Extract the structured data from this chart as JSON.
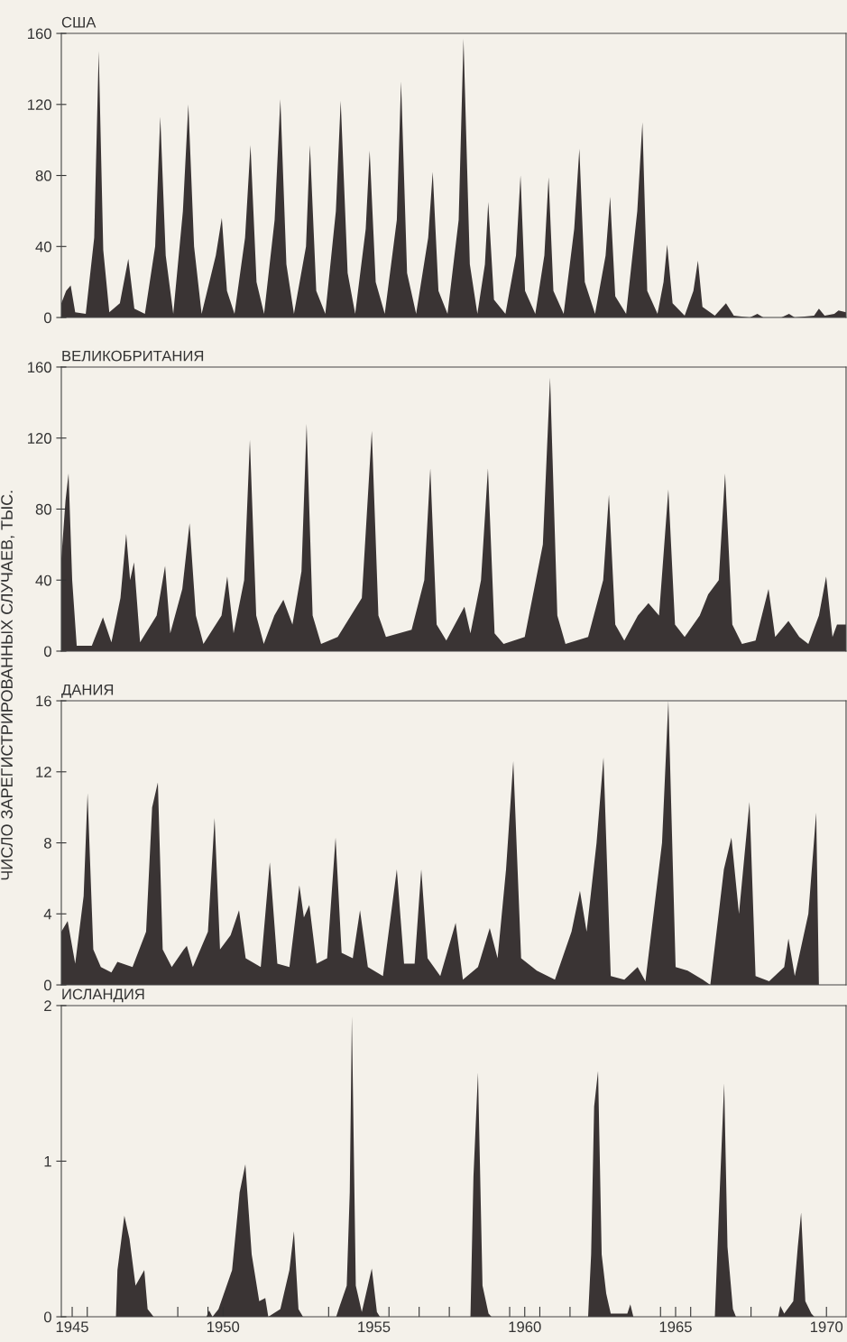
{
  "chart_data": [
    {
      "type": "area",
      "title": "США",
      "xlim": [
        1944.64,
        1970.65
      ],
      "ylim": [
        0,
        160
      ],
      "yticks": [
        0,
        40,
        80,
        120,
        160
      ],
      "tick_labels": "y",
      "grid": false,
      "series": [
        {
          "color": "#3a3434",
          "x": [
            1944.64,
            1944.8,
            1944.95,
            1945.1,
            1945.45,
            1945.73,
            1945.88,
            1946.03,
            1946.23,
            1946.58,
            1946.86,
            1947.06,
            1947.41,
            1947.75,
            1947.92,
            1948.1,
            1948.35,
            1948.67,
            1948.85,
            1949.04,
            1949.29,
            1949.76,
            1949.96,
            1950.13,
            1950.38,
            1950.73,
            1950.91,
            1951.11,
            1951.36,
            1951.71,
            1951.9,
            1952.1,
            1952.35,
            1952.75,
            1952.88,
            1953.09,
            1953.39,
            1953.74,
            1953.9,
            1954.13,
            1954.38,
            1954.73,
            1954.86,
            1955.06,
            1955.36,
            1955.76,
            1955.9,
            1956.1,
            1956.4,
            1956.8,
            1956.95,
            1957.14,
            1957.44,
            1957.81,
            1957.97,
            1958.18,
            1958.43,
            1958.68,
            1958.79,
            1958.98,
            1959.36,
            1959.71,
            1959.86,
            1960.01,
            1960.35,
            1960.65,
            1960.79,
            1960.95,
            1961.29,
            1961.64,
            1961.81,
            1961.99,
            1962.33,
            1962.68,
            1962.83,
            1963.0,
            1963.36,
            1963.73,
            1963.9,
            1964.06,
            1964.4,
            1964.6,
            1964.72,
            1964.9,
            1965.3,
            1965.59,
            1965.74,
            1965.89,
            1966.3,
            1966.67,
            1966.93,
            1967.46,
            1967.71,
            1967.91,
            1968.5,
            1968.76,
            1968.95,
            1969.59,
            1969.75,
            1969.94,
            1970.26,
            1970.4,
            1970.65
          ],
          "values": [
            8,
            15,
            18,
            3,
            2,
            45,
            150,
            38,
            3,
            8,
            33,
            5,
            2,
            40,
            113,
            35,
            2,
            60,
            120,
            40,
            2,
            35,
            56,
            15,
            2,
            45,
            97,
            20,
            2,
            55,
            123,
            30,
            2,
            40,
            97,
            15,
            2,
            60,
            122,
            25,
            2,
            50,
            94,
            20,
            2,
            55,
            133,
            25,
            2,
            45,
            82,
            15,
            2,
            55,
            157,
            30,
            2,
            30,
            65,
            10,
            2,
            35,
            80,
            15,
            2,
            35,
            79,
            15,
            2,
            50,
            95,
            20,
            2,
            35,
            68,
            12,
            2,
            60,
            110,
            15,
            2,
            20,
            41,
            8,
            1,
            15,
            32,
            6,
            1,
            8,
            1,
            0,
            2,
            0,
            0,
            2,
            0,
            1,
            5,
            1,
            2,
            4,
            3
          ]
        }
      ]
    },
    {
      "type": "area",
      "title": "ВЕЛИКОБРИТАНИЯ",
      "ylabel": "ЧИСЛО ЗАРЕГИСТРИРОВАННЫХ СЛУЧАЕВ, ТЫС.",
      "xlim": [
        1944.64,
        1970.65
      ],
      "ylim": [
        0,
        160
      ],
      "yticks": [
        0,
        40,
        80,
        120,
        160
      ],
      "tick_labels": "y",
      "grid": false,
      "series": [
        {
          "color": "#3a3434",
          "x": [
            1944.64,
            1944.78,
            1944.88,
            1945.0,
            1945.15,
            1945.65,
            1946.02,
            1946.3,
            1946.6,
            1946.79,
            1946.92,
            1947.05,
            1947.25,
            1947.8,
            1948.08,
            1948.25,
            1948.65,
            1948.89,
            1949.1,
            1949.35,
            1949.95,
            1950.14,
            1950.35,
            1950.7,
            1950.89,
            1951.1,
            1951.35,
            1951.7,
            1952.0,
            1952.3,
            1952.6,
            1952.77,
            1952.97,
            1953.25,
            1953.8,
            1954.6,
            1954.93,
            1955.15,
            1955.4,
            1956.25,
            1956.67,
            1956.87,
            1957.08,
            1957.4,
            1958.0,
            1958.2,
            1958.55,
            1958.78,
            1959.0,
            1959.3,
            1960.0,
            1960.6,
            1960.84,
            1961.08,
            1961.35,
            1962.1,
            1962.6,
            1962.79,
            1963.0,
            1963.3,
            1963.75,
            1964.1,
            1964.45,
            1964.76,
            1964.98,
            1965.3,
            1965.8,
            1966.08,
            1966.43,
            1966.64,
            1966.88,
            1967.2,
            1967.65,
            1968.08,
            1968.3,
            1968.74,
            1969.1,
            1969.4,
            1969.75,
            1969.99,
            1970.2,
            1970.35,
            1970.65
          ],
          "values": [
            52,
            85,
            100,
            40,
            3,
            3,
            19,
            5,
            30,
            66,
            40,
            50,
            5,
            20,
            48,
            10,
            35,
            72,
            20,
            4,
            20,
            42,
            10,
            40,
            119,
            20,
            4,
            20,
            29,
            15,
            45,
            128,
            20,
            4,
            8,
            30,
            124,
            20,
            8,
            12,
            40,
            103,
            15,
            6,
            25,
            10,
            40,
            103,
            10,
            4,
            8,
            60,
            154,
            20,
            4,
            8,
            40,
            88,
            15,
            6,
            20,
            27,
            20,
            91,
            15,
            8,
            20,
            32,
            40,
            100,
            15,
            4,
            6,
            35,
            8,
            17,
            8,
            4,
            20,
            42,
            8,
            15,
            15
          ]
        }
      ]
    },
    {
      "type": "area",
      "title": "ДАНИЯ",
      "xlim": [
        1944.64,
        1970.65
      ],
      "ylim": [
        0,
        16
      ],
      "yticks": [
        0,
        4,
        8,
        12,
        16
      ],
      "tick_labels": "y",
      "grid": false,
      "series": [
        {
          "color": "#3a3434",
          "x": [
            1944.64,
            1944.85,
            1945.1,
            1945.38,
            1945.51,
            1945.7,
            1945.95,
            1946.3,
            1946.5,
            1947.0,
            1947.45,
            1947.65,
            1947.84,
            1948.0,
            1948.3,
            1948.7,
            1948.8,
            1949.0,
            1949.5,
            1949.72,
            1949.9,
            1950.25,
            1950.53,
            1950.75,
            1951.25,
            1951.55,
            1951.8,
            1952.2,
            1952.53,
            1952.68,
            1952.86,
            1953.1,
            1953.45,
            1953.73,
            1953.93,
            1954.3,
            1954.54,
            1954.8,
            1955.3,
            1955.76,
            1956.0,
            1956.35,
            1956.57,
            1956.78,
            1957.2,
            1957.71,
            1957.95,
            1958.45,
            1958.84,
            1959.1,
            1959.38,
            1959.62,
            1959.88,
            1960.4,
            1961.0,
            1961.55,
            1961.83,
            1962.05,
            1962.38,
            1962.61,
            1962.85,
            1963.3,
            1963.74,
            1964.0,
            1964.55,
            1964.76,
            1965.0,
            1965.4,
            1965.9,
            1966.15,
            1966.6,
            1966.85,
            1967.1,
            1967.45,
            1967.65,
            1968.1,
            1968.6,
            1968.74,
            1968.95,
            1969.4,
            1969.66,
            1969.75
          ],
          "values": [
            3,
            3.6,
            1.2,
            5,
            10.8,
            2,
            1,
            0.7,
            1.3,
            1,
            3,
            10,
            11.4,
            2,
            1,
            2,
            2.2,
            1,
            3,
            9.4,
            2,
            2.8,
            4.2,
            1.5,
            1,
            6.9,
            1.2,
            1,
            5.6,
            3.8,
            4.5,
            1.2,
            1.5,
            8.3,
            1.8,
            1.5,
            4.2,
            1,
            0.5,
            6.5,
            1.2,
            1.2,
            6.5,
            1.5,
            0.5,
            3.5,
            0.3,
            1,
            3.2,
            1.5,
            6.5,
            12.6,
            1.5,
            0.8,
            0.3,
            3,
            5.3,
            3,
            8,
            12.8,
            0.5,
            0.3,
            1.0,
            0.2,
            8,
            16,
            1,
            0.8,
            0.3,
            0,
            6.5,
            8.3,
            4,
            10.3,
            0.5,
            0.2,
            1,
            2.6,
            0.5,
            4,
            9.7,
            0
          ]
        }
      ]
    },
    {
      "type": "area",
      "title": "ИСЛАНДИЯ",
      "xlim": [
        1944.64,
        1970.65
      ],
      "ylim": [
        0,
        2
      ],
      "yticks": [
        0,
        1,
        2
      ],
      "grid": false,
      "xticks": [
        1945,
        1950,
        1955,
        1960,
        1965,
        1970,
        {
          "value": 1945.5,
          "label": null
        },
        {
          "value": 1948.5,
          "label": null
        },
        {
          "value": 1949.5,
          "label": null
        },
        {
          "value": 1953.5,
          "label": null
        },
        {
          "value": 1955.5,
          "label": null
        },
        {
          "value": 1956.5,
          "label": null
        },
        {
          "value": 1957.5,
          "label": null
        },
        {
          "value": 1959.5,
          "label": null
        },
        {
          "value": 1960.5,
          "label": null
        },
        {
          "value": 1961.5,
          "label": null
        },
        {
          "value": 1964.5,
          "label": null
        },
        {
          "value": 1965.5,
          "label": null
        },
        {
          "value": 1967.5,
          "label": null
        }
      ],
      "series": [
        {
          "color": "#3a3434",
          "x": [
            1944.64,
            1946.45,
            1946.5,
            1946.73,
            1946.9,
            1947.1,
            1947.39,
            1947.5,
            1947.7,
            1949.45,
            1949.54,
            1949.65,
            1949.85,
            1950.3,
            1950.55,
            1950.74,
            1950.95,
            1951.2,
            1951.4,
            1951.5,
            1951.9,
            1952.2,
            1952.35,
            1952.5,
            1952.65,
            1953.75,
            1953.85,
            1954.1,
            1954.2,
            1954.27,
            1954.4,
            1954.6,
            1954.93,
            1955.1,
            1955.2,
            1958.2,
            1958.3,
            1958.45,
            1958.6,
            1958.8,
            1958.9,
            1962.1,
            1962.2,
            1962.3,
            1962.43,
            1962.55,
            1962.7,
            1962.85,
            1963.4,
            1963.5,
            1963.6,
            1966.3,
            1966.45,
            1966.61,
            1966.72,
            1966.9,
            1967.0,
            1968.4,
            1968.47,
            1968.6,
            1968.9,
            1969.05,
            1969.16,
            1969.3,
            1969.5,
            1969.6,
            1970.65
          ],
          "values": [
            0,
            0,
            0.3,
            0.65,
            0.5,
            0.2,
            0.3,
            0.05,
            0,
            0,
            0.04,
            0,
            0.05,
            0.3,
            0.8,
            0.98,
            0.4,
            0.1,
            0.12,
            0,
            0.05,
            0.3,
            0.55,
            0.05,
            0,
            0,
            0.06,
            0.2,
            0.8,
            1.93,
            0.2,
            0.03,
            0.31,
            0.03,
            0,
            0,
            0.9,
            1.57,
            0.2,
            0.02,
            0,
            0,
            0.4,
            1.35,
            1.58,
            0.4,
            0.15,
            0.02,
            0.02,
            0.08,
            0,
            0,
            0.75,
            1.5,
            0.45,
            0.05,
            0,
            0,
            0.07,
            0.02,
            0.1,
            0.45,
            0.67,
            0.1,
            0.02,
            0,
            0
          ]
        }
      ]
    }
  ]
}
